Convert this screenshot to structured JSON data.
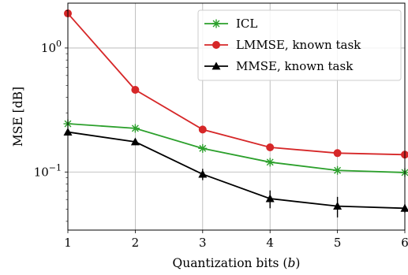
{
  "chart_data": {
    "type": "line",
    "xlabel": "Quantization bits (b)",
    "ylabel": "MSE [dB]",
    "x": [
      1,
      2,
      3,
      4,
      5,
      6
    ],
    "xlim": [
      1,
      6
    ],
    "ylim": [
      0.034,
      2.3
    ],
    "yscale": "log",
    "x_ticks": [
      "1",
      "2",
      "3",
      "4",
      "5",
      "6"
    ],
    "y_ticks": [
      {
        "value": 1,
        "label": "10^0",
        "base": "10",
        "exp": "0"
      },
      {
        "value": 0.1,
        "label": "10^-1",
        "base": "10",
        "exp": "−1"
      }
    ],
    "grid": true,
    "legend_position": "top-right",
    "series": [
      {
        "name": "ICL",
        "color": "#2ca02c",
        "marker": "star",
        "values": [
          0.245,
          0.225,
          0.155,
          0.12,
          0.103,
          0.099
        ],
        "err": [
          0.004,
          0.004,
          0.004,
          0.004,
          0.004,
          0.004
        ]
      },
      {
        "name": "LMMSE, known task",
        "color": "#d62728",
        "marker": "circle",
        "values": [
          1.9,
          0.46,
          0.22,
          0.158,
          0.142,
          0.138
        ],
        "err": [
          0.02,
          0.01,
          0.005,
          0.004,
          0.004,
          0.004
        ]
      },
      {
        "name": "MMSE, known task",
        "color": "#000000",
        "marker": "triangle",
        "values": [
          0.21,
          0.175,
          0.096,
          0.061,
          0.053,
          0.051
        ],
        "err": [
          0.006,
          0.006,
          0.01,
          0.01,
          0.01,
          0.004
        ]
      }
    ]
  }
}
